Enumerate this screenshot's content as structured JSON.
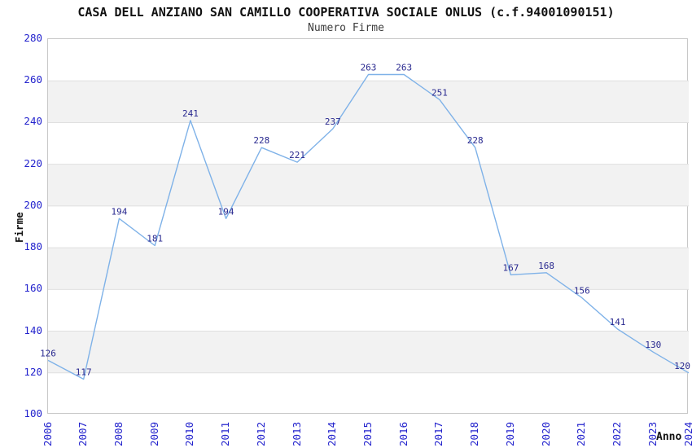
{
  "title": "CASA DELL ANZIANO SAN CAMILLO COOPERATIVA SOCIALE ONLUS (c.f.94001090151)",
  "subtitle": "Numero Firme",
  "chart_data": {
    "type": "line",
    "title": "CASA DELL ANZIANO SAN CAMILLO COOPERATIVA SOCIALE ONLUS (c.f.94001090151)",
    "subtitle": "Numero Firme",
    "xlabel": "Anno",
    "ylabel": "Firme",
    "categories": [
      "2006",
      "2007",
      "2008",
      "2009",
      "2010",
      "2011",
      "2012",
      "2013",
      "2014",
      "2015",
      "2016",
      "2017",
      "2018",
      "2019",
      "2020",
      "2021",
      "2022",
      "2023",
      "2024"
    ],
    "series": [
      {
        "name": "Numero Firme",
        "values": [
          126,
          117,
          194,
          181,
          241,
          194,
          228,
          221,
          237,
          263,
          263,
          251,
          228,
          167,
          168,
          156,
          141,
          130,
          120
        ]
      }
    ],
    "ylim": [
      100,
      280
    ],
    "ytick_step": 20,
    "grid": "horizontal-bands",
    "legend": "none",
    "point_labels_visible": true,
    "colors": {
      "line": "#7fb2e8",
      "tick_label": "#2323cd",
      "data_label": "#28288f",
      "band": "#f2f2f2",
      "gridline": "#e0e0e0",
      "plot_border": "#c8c8c8",
      "title": "#111111",
      "subtitle": "#3d3d3d",
      "background": "#ffffff"
    }
  }
}
